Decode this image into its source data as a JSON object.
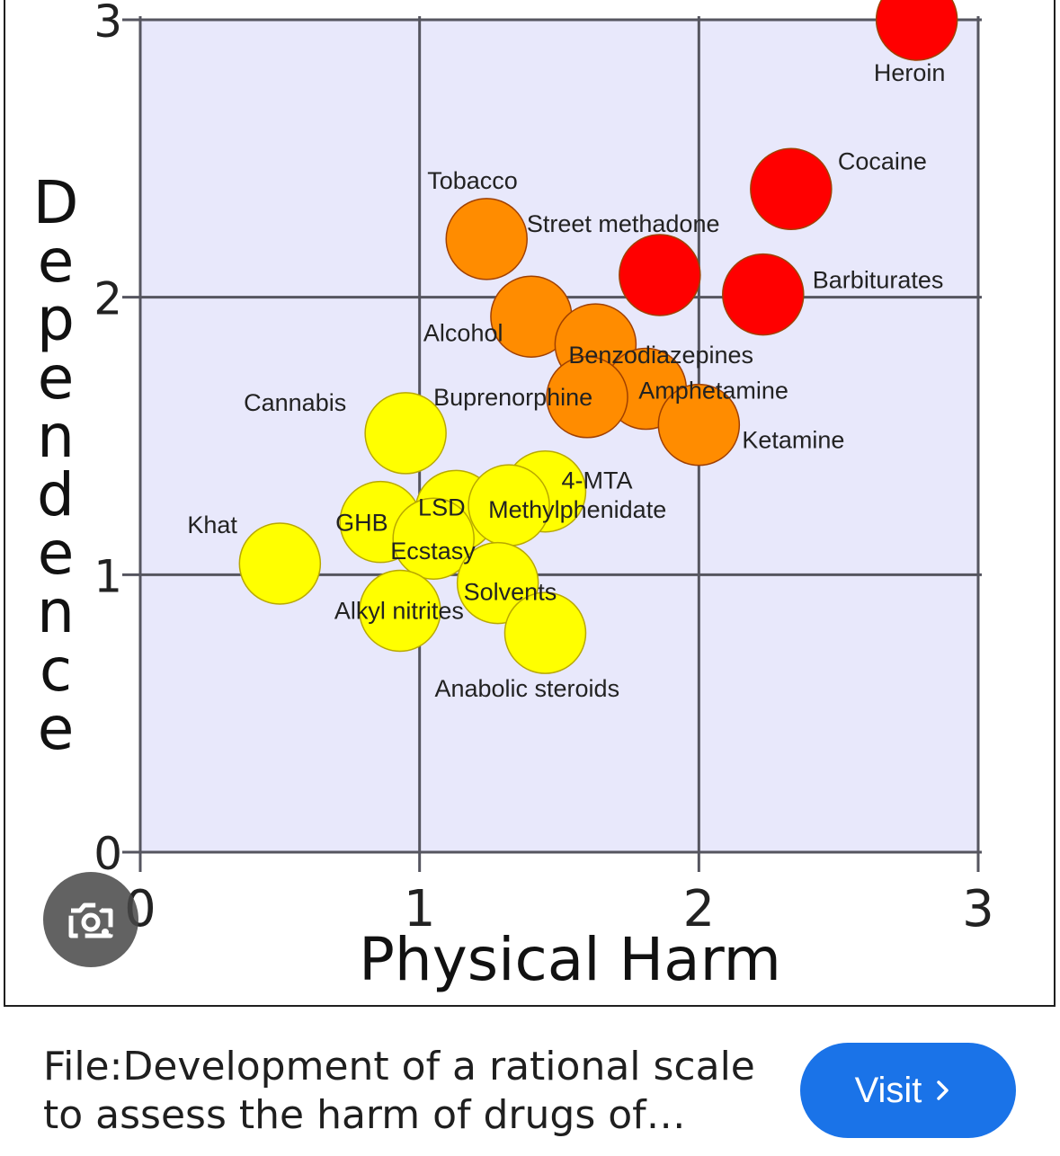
{
  "chart_data": {
    "type": "scatter",
    "xlabel": "Physical Harm",
    "ylabel": "Dependence",
    "xlim": [
      0,
      3
    ],
    "ylim": [
      0,
      3
    ],
    "xticks": [
      "0",
      "1",
      "2",
      "3"
    ],
    "yticks": [
      "0",
      "1",
      "2",
      "3"
    ],
    "grid": true,
    "colors": {
      "plot_background": "#e8e8fb",
      "grid": "#55555f",
      "high": "#ff0000",
      "medium": "#ff8c00",
      "low": "#ffff00"
    },
    "points": [
      {
        "label": "Heroin",
        "x": 2.78,
        "y": 3.0,
        "group": "high"
      },
      {
        "label": "Cocaine",
        "x": 2.33,
        "y": 2.39,
        "group": "high"
      },
      {
        "label": "Barbiturates",
        "x": 2.23,
        "y": 2.01,
        "group": "high"
      },
      {
        "label": "Street methadone",
        "x": 1.86,
        "y": 2.08,
        "group": "high"
      },
      {
        "label": "Tobacco",
        "x": 1.24,
        "y": 2.21,
        "group": "medium"
      },
      {
        "label": "Alcohol",
        "x": 1.4,
        "y": 1.93,
        "group": "medium"
      },
      {
        "label": "Benzodiazepines",
        "x": 1.63,
        "y": 1.83,
        "group": "medium"
      },
      {
        "label": "Amphetamine",
        "x": 1.81,
        "y": 1.67,
        "group": "medium"
      },
      {
        "label": "Buprenorphine",
        "x": 1.6,
        "y": 1.64,
        "group": "medium"
      },
      {
        "label": "Ketamine",
        "x": 2.0,
        "y": 1.54,
        "group": "medium"
      },
      {
        "label": "Cannabis",
        "x": 0.95,
        "y": 1.51,
        "group": "low"
      },
      {
        "label": "4-MTA",
        "x": 1.45,
        "y": 1.3,
        "group": "low"
      },
      {
        "label": "LSD",
        "x": 1.13,
        "y": 1.23,
        "group": "low"
      },
      {
        "label": "Methylphenidate",
        "x": 1.32,
        "y": 1.25,
        "group": "low"
      },
      {
        "label": "GHB",
        "x": 0.86,
        "y": 1.19,
        "group": "low"
      },
      {
        "label": "Ecstasy",
        "x": 1.05,
        "y": 1.13,
        "group": "low"
      },
      {
        "label": "Khat",
        "x": 0.5,
        "y": 1.04,
        "group": "low"
      },
      {
        "label": "Solvents",
        "x": 1.28,
        "y": 0.97,
        "group": "low"
      },
      {
        "label": "Alkyl nitrites",
        "x": 0.93,
        "y": 0.87,
        "group": "low"
      },
      {
        "label": "Anabolic steroids",
        "x": 1.45,
        "y": 0.79,
        "group": "low"
      }
    ]
  },
  "icons": {
    "lens": "camera-search-icon",
    "visit_chevron": "chevron-right-icon"
  },
  "caption": "File:Development of a rational scale to assess the harm of drugs of potential misuse.svg",
  "visit_label": "Visit"
}
